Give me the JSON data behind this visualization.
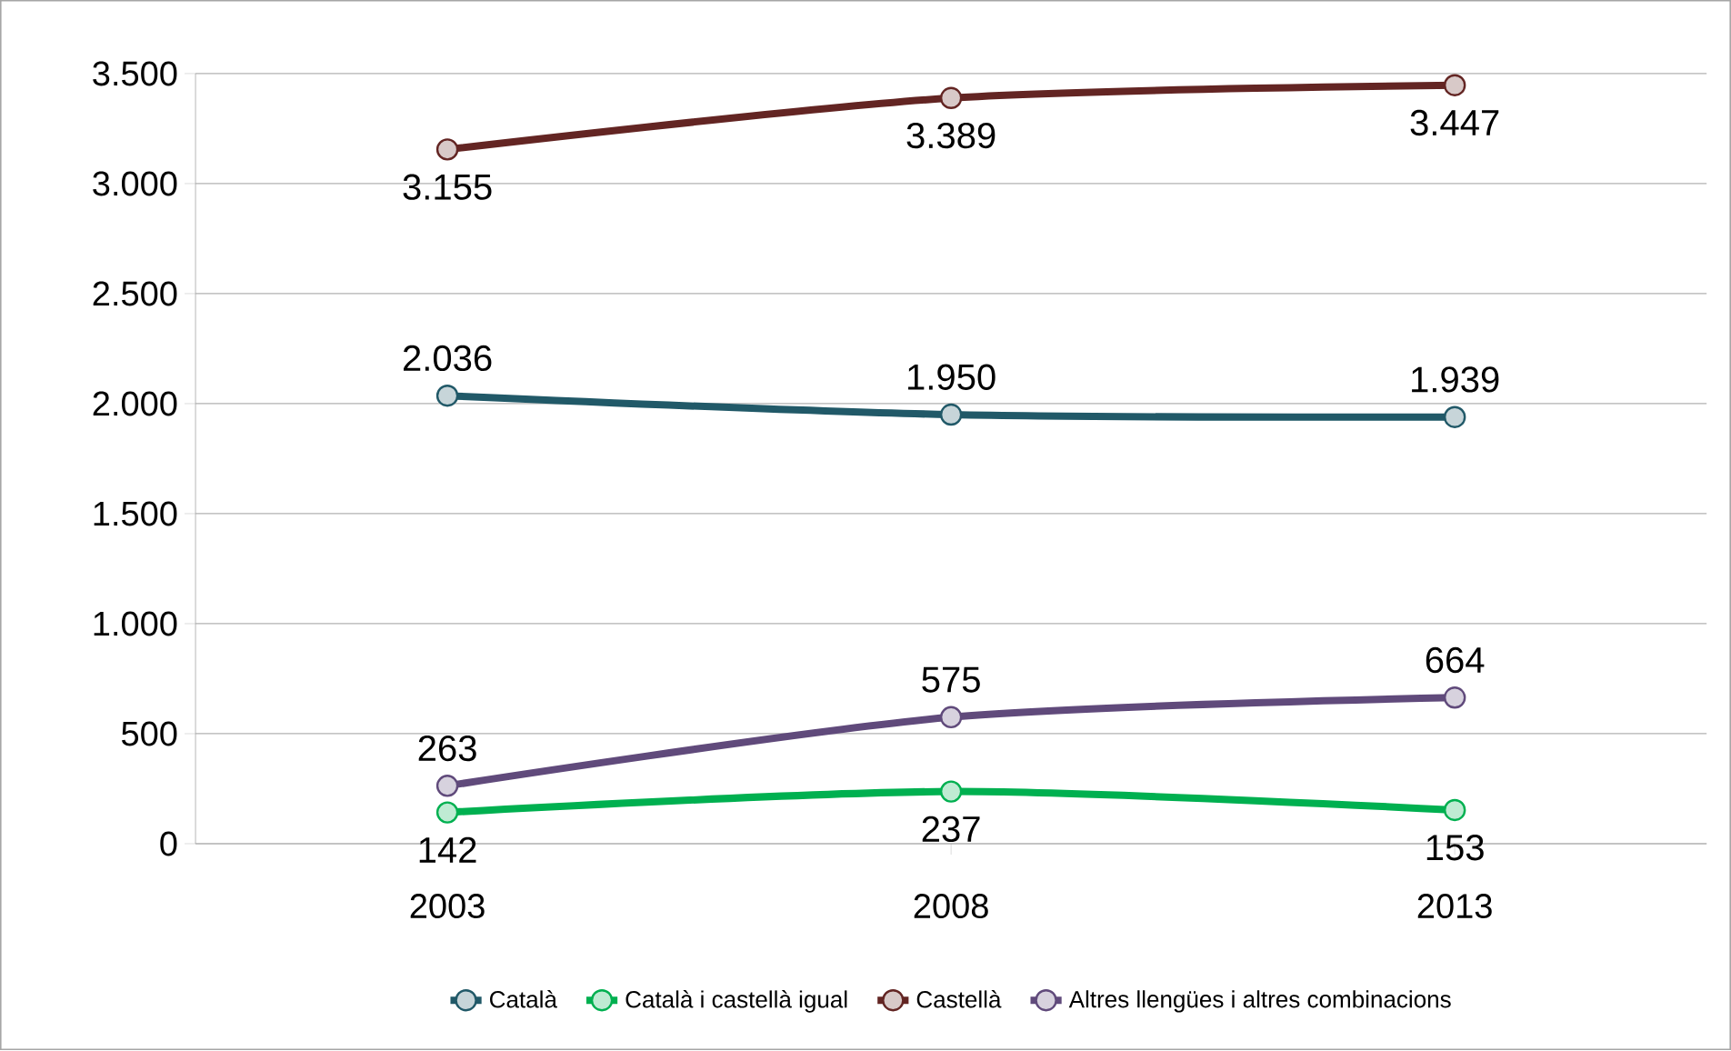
{
  "chart_data": {
    "type": "line",
    "categories": [
      "2003",
      "2008",
      "2013"
    ],
    "series": [
      {
        "name": "Català",
        "color": "#215968",
        "values": [
          2036,
          1950,
          1939
        ],
        "value_labels": [
          "2.036",
          "1.950",
          "1.939"
        ]
      },
      {
        "name": "Català i castellà igual",
        "color": "#00b050",
        "values": [
          142,
          237,
          153
        ],
        "value_labels": [
          "142",
          "237",
          "153"
        ]
      },
      {
        "name": "Castellà",
        "color": "#632523",
        "values": [
          3155,
          3389,
          3447
        ],
        "value_labels": [
          "3.155",
          "3.389",
          "3.447"
        ]
      },
      {
        "name": "Altres llengües i altres combinacions",
        "color": "#604a7b",
        "values": [
          263,
          575,
          664
        ],
        "value_labels": [
          "263",
          "575",
          "664"
        ]
      }
    ],
    "ylim": [
      0,
      3500
    ],
    "yticks": [
      0,
      500,
      {
        "value": 1000,
        "label": "1.000"
      },
      {
        "value": 1500,
        "label": "1.500"
      },
      {
        "value": 2000,
        "label": "2.000"
      },
      {
        "value": 2500,
        "label": "2.500"
      },
      {
        "value": 3000,
        "label": "3.000"
      },
      {
        "value": 3500,
        "label": "3.500"
      }
    ],
    "grid": "y",
    "legend": "bottom",
    "marker": "circle",
    "line_style": "solid"
  }
}
